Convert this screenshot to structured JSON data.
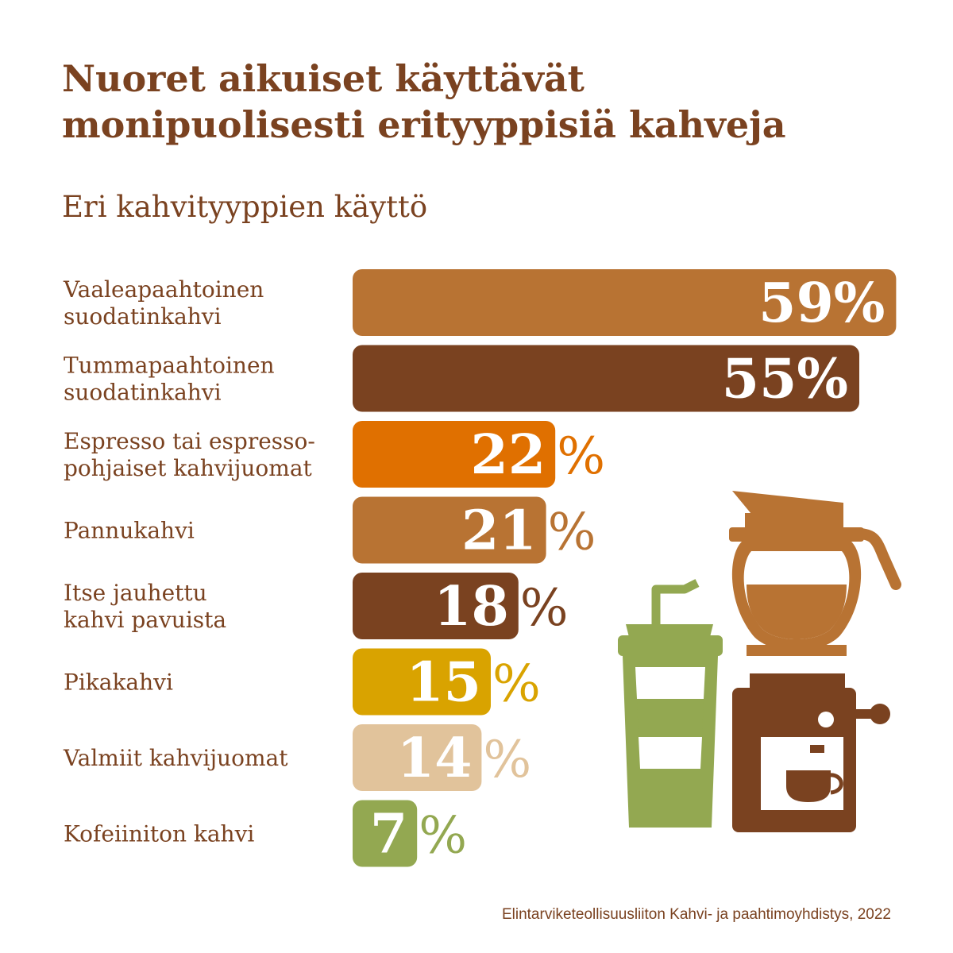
{
  "title_line1": "Nuoret aikuiset käyttävät",
  "title_line2": "monipuolisesti erityyppisiä kahveja",
  "subtitle": "Eri kahvityyppien käyttö",
  "source": "Elintarviketeollisuusliiton Kahvi- ja paahtimoyhdistys, 2022",
  "icons": [
    "coffee-pot-icon",
    "takeaway-cup-icon",
    "espresso-machine-icon"
  ],
  "chart_data": {
    "type": "bar",
    "orientation": "horizontal",
    "unit": "%",
    "categories": [
      [
        "Vaaleapaahtoinen",
        "suodatinkahvi"
      ],
      [
        "Tummapaahtoinen",
        "suodatinkahvi"
      ],
      [
        "Espresso tai espresso-",
        "pohjaiset kahvijuomat"
      ],
      [
        "Pannukahvi"
      ],
      [
        "Itse jauhettu",
        "kahvi pavuista"
      ],
      [
        "Pikakahvi"
      ],
      [
        "Valmiit kahvijuomat"
      ],
      [
        "Kofeiiniton kahvi"
      ]
    ],
    "values": [
      59,
      55,
      22,
      21,
      18,
      15,
      14,
      7
    ],
    "colors": [
      "#b87333",
      "#7a4220",
      "#e07000",
      "#b87333",
      "#7a4220",
      "#d9a300",
      "#e1c39b",
      "#93a851"
    ],
    "value_labels": [
      "59%",
      "55%",
      "22%",
      "21%",
      "18%",
      "15%",
      "14%",
      "7%"
    ]
  }
}
